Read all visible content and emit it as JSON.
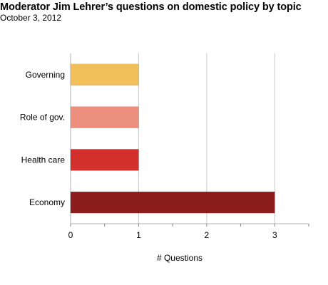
{
  "chart_data": {
    "type": "bar",
    "orientation": "horizontal",
    "title": "Moderator Jim Lehrer’s questions on domestic policy by topic",
    "subtitle": "October 3, 2012",
    "categories": [
      "Governing",
      "Role of gov.",
      "Health care",
      "Economy"
    ],
    "values": [
      1,
      1,
      1,
      3
    ],
    "colors": [
      "#f1c05a",
      "#eb8e7d",
      "#d2302c",
      "#8b1d1d"
    ],
    "xlabel": "# Questions",
    "ylabel": "",
    "xlim": [
      0,
      3.5
    ],
    "xticks": [
      "0",
      "1",
      "2",
      "3"
    ],
    "grid": true,
    "legend": "none"
  }
}
